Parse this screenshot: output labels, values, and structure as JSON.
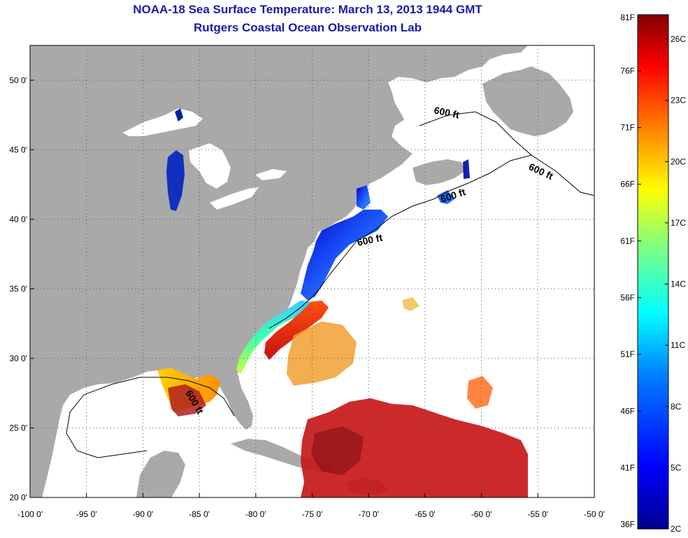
{
  "title": {
    "line1": "NOAA-18 Sea Surface Temperature:  March 13, 2013 1944 GMT",
    "line2": "Rutgers Coastal Ocean Observation Lab"
  },
  "map": {
    "lon_range": [
      -100,
      -50
    ],
    "lat_range": [
      20,
      52.5
    ],
    "lon_ticks": [
      {
        "value": -100,
        "label": "-100 0'"
      },
      {
        "value": -95,
        "label": "-95 0'"
      },
      {
        "value": -90,
        "label": "-90 0'"
      },
      {
        "value": -85,
        "label": "-85 0'"
      },
      {
        "value": -80,
        "label": "-80 0'"
      },
      {
        "value": -75,
        "label": "-75 0'"
      },
      {
        "value": -70,
        "label": "-70 0'"
      },
      {
        "value": -65,
        "label": "-65 0'"
      },
      {
        "value": -60,
        "label": "-60 0'"
      },
      {
        "value": -55,
        "label": "-55 0'"
      },
      {
        "value": -50,
        "label": "-50 0'"
      }
    ],
    "lat_ticks": [
      {
        "value": 20,
        "label": "20 0'"
      },
      {
        "value": 25,
        "label": "25 0'"
      },
      {
        "value": 30,
        "label": "30 0'"
      },
      {
        "value": 35,
        "label": "35 0'"
      },
      {
        "value": 40,
        "label": "40 0'"
      },
      {
        "value": 45,
        "label": "45 0'"
      },
      {
        "value": 50,
        "label": "50 0'"
      }
    ],
    "grid": "dotted",
    "land_color": "#a9a9a9",
    "ocean_color": "#ffffff",
    "contour_labels": [
      "600 ft",
      "600 ft",
      "600 ft",
      "600 ft",
      "600 ft"
    ]
  },
  "colorbar": {
    "range_c": [
      2,
      27.2
    ],
    "fahrenheit_labels": [
      "81F",
      "76F",
      "71F",
      "66F",
      "61F",
      "56F",
      "51F",
      "46F",
      "41F",
      "36F"
    ],
    "celsius_labels": [
      "26C",
      "23C",
      "20C",
      "17C",
      "14C",
      "11C",
      "8C",
      "5C",
      "2C"
    ],
    "colormap": [
      "#00008f",
      "#0000ff",
      "#0080ff",
      "#00ffff",
      "#80ff80",
      "#ffff00",
      "#ff8000",
      "#ff0000",
      "#800000"
    ]
  }
}
